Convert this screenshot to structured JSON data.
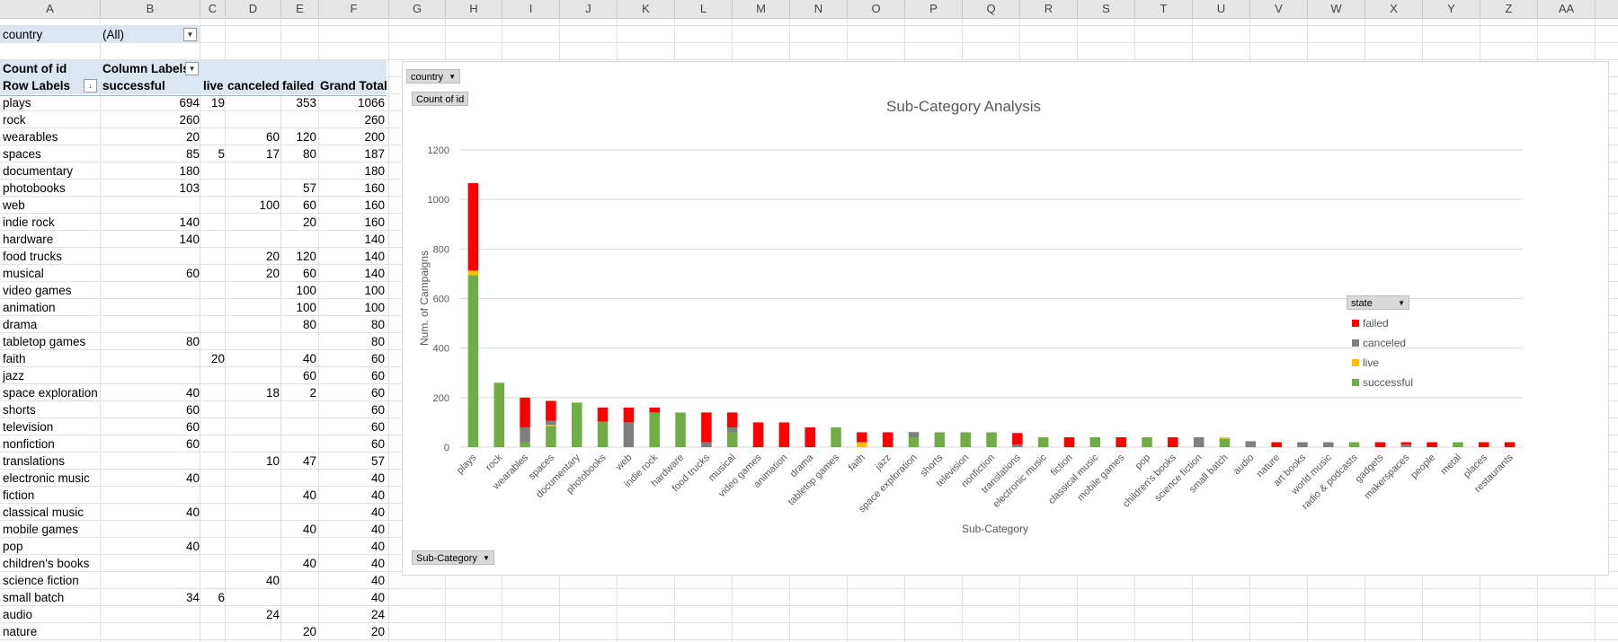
{
  "columns": [
    "A",
    "B",
    "C",
    "D",
    "E",
    "F",
    "G",
    "H",
    "I",
    "J",
    "K",
    "L",
    "M",
    "N",
    "O",
    "P",
    "Q",
    "R",
    "S",
    "T",
    "U",
    "V",
    "W",
    "X",
    "Y",
    "Z",
    "AA"
  ],
  "filter": {
    "label": "country",
    "value": "(All)"
  },
  "pivot": {
    "corner": "Count of id",
    "column_labels": "Column Labels",
    "row_labels": "Row Labels",
    "col_headers": [
      "successful",
      "live",
      "canceled",
      "failed",
      "Grand Total"
    ],
    "rows": [
      {
        "label": "plays",
        "successful": "694",
        "live": "19",
        "canceled": "",
        "failed": "353",
        "total": "1066"
      },
      {
        "label": "rock",
        "successful": "260",
        "live": "",
        "canceled": "",
        "failed": "",
        "total": "260"
      },
      {
        "label": "wearables",
        "successful": "20",
        "live": "",
        "canceled": "60",
        "failed": "120",
        "total": "200"
      },
      {
        "label": "spaces",
        "successful": "85",
        "live": "5",
        "canceled": "17",
        "failed": "80",
        "total": "187"
      },
      {
        "label": "documentary",
        "successful": "180",
        "live": "",
        "canceled": "",
        "failed": "",
        "total": "180"
      },
      {
        "label": "photobooks",
        "successful": "103",
        "live": "",
        "canceled": "",
        "failed": "57",
        "total": "160"
      },
      {
        "label": "web",
        "successful": "",
        "live": "",
        "canceled": "100",
        "failed": "60",
        "total": "160"
      },
      {
        "label": "indie rock",
        "successful": "140",
        "live": "",
        "canceled": "",
        "failed": "20",
        "total": "160"
      },
      {
        "label": "hardware",
        "successful": "140",
        "live": "",
        "canceled": "",
        "failed": "",
        "total": "140"
      },
      {
        "label": "food trucks",
        "successful": "",
        "live": "",
        "canceled": "20",
        "failed": "120",
        "total": "140"
      },
      {
        "label": "musical",
        "successful": "60",
        "live": "",
        "canceled": "20",
        "failed": "60",
        "total": "140"
      },
      {
        "label": "video games",
        "successful": "",
        "live": "",
        "canceled": "",
        "failed": "100",
        "total": "100"
      },
      {
        "label": "animation",
        "successful": "",
        "live": "",
        "canceled": "",
        "failed": "100",
        "total": "100"
      },
      {
        "label": "drama",
        "successful": "",
        "live": "",
        "canceled": "",
        "failed": "80",
        "total": "80"
      },
      {
        "label": "tabletop games",
        "successful": "80",
        "live": "",
        "canceled": "",
        "failed": "",
        "total": "80"
      },
      {
        "label": "faith",
        "successful": "",
        "live": "20",
        "canceled": "",
        "failed": "40",
        "total": "60"
      },
      {
        "label": "jazz",
        "successful": "",
        "live": "",
        "canceled": "",
        "failed": "60",
        "total": "60"
      },
      {
        "label": "space exploration",
        "successful": "40",
        "live": "",
        "canceled": "18",
        "failed": "2",
        "total": "60"
      },
      {
        "label": "shorts",
        "successful": "60",
        "live": "",
        "canceled": "",
        "failed": "",
        "total": "60"
      },
      {
        "label": "television",
        "successful": "60",
        "live": "",
        "canceled": "",
        "failed": "",
        "total": "60"
      },
      {
        "label": "nonfiction",
        "successful": "60",
        "live": "",
        "canceled": "",
        "failed": "",
        "total": "60"
      },
      {
        "label": "translations",
        "successful": "",
        "live": "",
        "canceled": "10",
        "failed": "47",
        "total": "57"
      },
      {
        "label": "electronic music",
        "successful": "40",
        "live": "",
        "canceled": "",
        "failed": "",
        "total": "40"
      },
      {
        "label": "fiction",
        "successful": "",
        "live": "",
        "canceled": "",
        "failed": "40",
        "total": "40"
      },
      {
        "label": "classical music",
        "successful": "40",
        "live": "",
        "canceled": "",
        "failed": "",
        "total": "40"
      },
      {
        "label": "mobile games",
        "successful": "",
        "live": "",
        "canceled": "",
        "failed": "40",
        "total": "40"
      },
      {
        "label": "pop",
        "successful": "40",
        "live": "",
        "canceled": "",
        "failed": "",
        "total": "40"
      },
      {
        "label": "children's books",
        "successful": "",
        "live": "",
        "canceled": "",
        "failed": "40",
        "total": "40"
      },
      {
        "label": "science fiction",
        "successful": "",
        "live": "",
        "canceled": "40",
        "failed": "",
        "total": "40"
      },
      {
        "label": "small batch",
        "successful": "34",
        "live": "6",
        "canceled": "",
        "failed": "",
        "total": "40"
      },
      {
        "label": "audio",
        "successful": "",
        "live": "",
        "canceled": "24",
        "failed": "",
        "total": "24"
      },
      {
        "label": "nature",
        "successful": "",
        "live": "",
        "canceled": "",
        "failed": "20",
        "total": "20"
      }
    ]
  },
  "chart_fields": {
    "country": "country",
    "count": "Count of id",
    "subcategory": "Sub-Category",
    "state": "state"
  },
  "colors": {
    "successful": "#70ad47",
    "live": "#ffc000",
    "canceled": "#7f7f7f",
    "failed": "#ff0000"
  },
  "chart_data": {
    "type": "bar",
    "stacked": true,
    "title": "Sub-Category Analysis",
    "xlabel": "Sub-Category",
    "ylabel": "Num. of Campaigns",
    "ylim": [
      0,
      1200
    ],
    "yticks": [
      0,
      200,
      400,
      600,
      800,
      1000,
      1200
    ],
    "grid": true,
    "legend": {
      "title": "state",
      "placement": "right",
      "order": [
        "failed",
        "canceled",
        "live",
        "successful"
      ]
    },
    "categories": [
      "plays",
      "rock",
      "wearables",
      "spaces",
      "documentary",
      "photobooks",
      "web",
      "indie rock",
      "hardware",
      "food trucks",
      "musical",
      "video games",
      "animation",
      "drama",
      "tabletop games",
      "faith",
      "jazz",
      "space exploration",
      "shorts",
      "television",
      "nonfiction",
      "translations",
      "electronic music",
      "fiction",
      "classical music",
      "mobile games",
      "pop",
      "children's books",
      "science fiction",
      "small batch",
      "audio",
      "nature",
      "art books",
      "world music",
      "radio & podcasts",
      "gadgets",
      "makerspaces",
      "people",
      "metal",
      "places",
      "restaurants"
    ],
    "series": [
      {
        "name": "successful",
        "values": [
          694,
          260,
          20,
          85,
          180,
          103,
          0,
          140,
          140,
          0,
          60,
          0,
          0,
          0,
          80,
          0,
          0,
          40,
          60,
          60,
          60,
          0,
          40,
          0,
          40,
          0,
          40,
          0,
          0,
          34,
          0,
          0,
          0,
          0,
          20,
          0,
          0,
          0,
          20,
          0,
          0
        ]
      },
      {
        "name": "live",
        "values": [
          19,
          0,
          0,
          5,
          0,
          0,
          0,
          0,
          0,
          0,
          0,
          0,
          0,
          0,
          0,
          20,
          0,
          0,
          0,
          0,
          0,
          0,
          0,
          0,
          0,
          0,
          0,
          0,
          0,
          6,
          0,
          0,
          0,
          0,
          0,
          0,
          0,
          0,
          0,
          0,
          0
        ]
      },
      {
        "name": "canceled",
        "values": [
          0,
          0,
          60,
          17,
          0,
          0,
          100,
          0,
          0,
          20,
          20,
          0,
          0,
          0,
          0,
          0,
          0,
          18,
          0,
          0,
          0,
          10,
          0,
          0,
          0,
          0,
          0,
          0,
          40,
          0,
          24,
          0,
          20,
          20,
          0,
          0,
          10,
          0,
          0,
          0,
          0
        ]
      },
      {
        "name": "failed",
        "values": [
          353,
          0,
          120,
          80,
          0,
          57,
          60,
          20,
          0,
          120,
          60,
          100,
          100,
          80,
          0,
          40,
          60,
          2,
          0,
          0,
          0,
          47,
          0,
          40,
          0,
          40,
          0,
          40,
          0,
          0,
          0,
          20,
          0,
          0,
          0,
          20,
          10,
          20,
          0,
          20,
          20
        ]
      }
    ]
  }
}
